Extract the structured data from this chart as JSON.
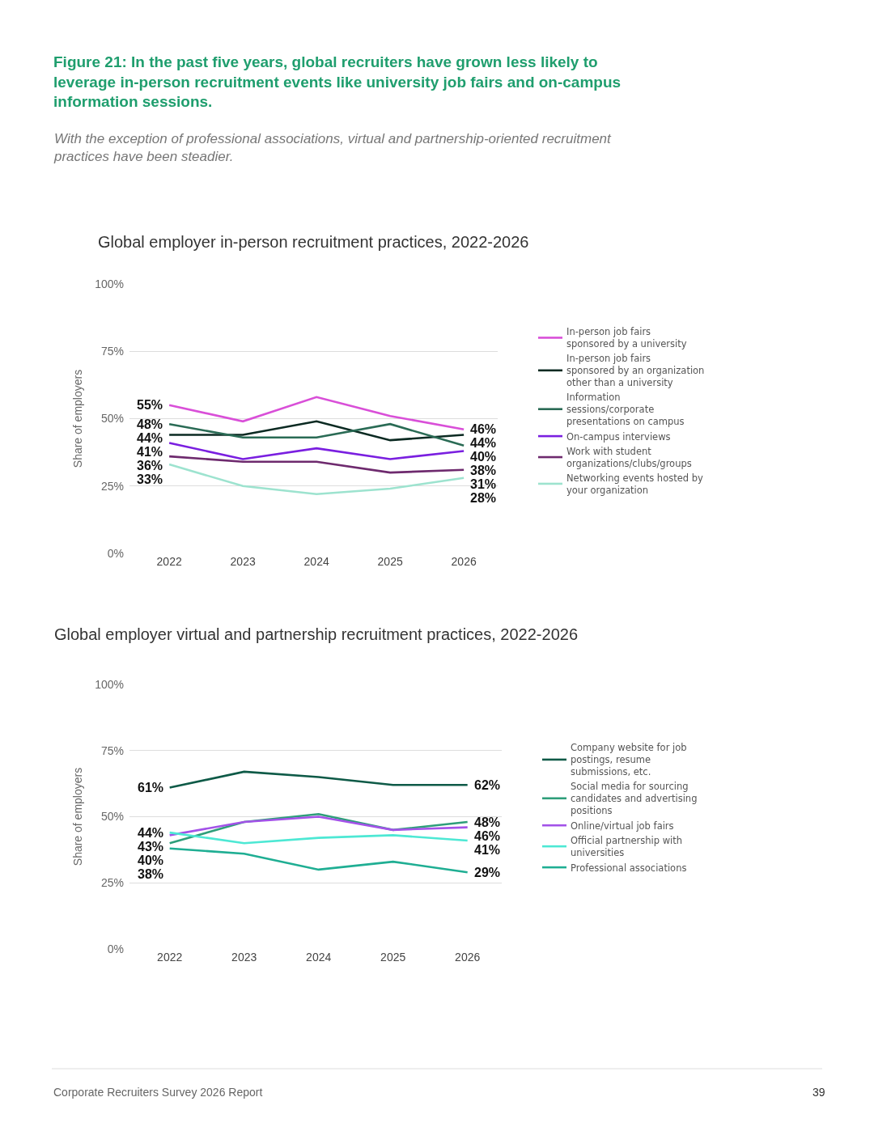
{
  "chart_data": [
    {
      "type": "line",
      "title": "Global employer in-person recruitment practices, 2022-2026",
      "annotations": [
        "Figure 21: In the past five years, global recruiters have grown less likely to leverage in-person recruitment events like university job fairs and on-campus information sessions.",
        "With the exception of professional associations, virtual and partnership-oriented recruitment practices have been steadier."
      ],
      "categories": [
        "2022",
        "2023",
        "2024",
        "2025",
        "2026"
      ],
      "ylabel": "Share of employers",
      "ylim": [
        0,
        100
      ],
      "yticks": [
        {
          "value": 0,
          "label": "0%"
        },
        {
          "value": 25,
          "label": "25%"
        },
        {
          "value": 50,
          "label": "50%"
        },
        {
          "value": 75,
          "label": "75%"
        },
        {
          "value": 100,
          "label": "100%"
        }
      ],
      "grid": "y",
      "legend": "right",
      "series": [
        {
          "name": "In-person job fairs sponsored by a university",
          "color": "#d94fd8",
          "values": [
            55,
            49,
            58,
            51,
            46
          ],
          "value_labels": [
            "55%",
            null,
            null,
            null,
            "46%"
          ]
        },
        {
          "name": "In-person job fairs sponsored by an organization other than a university",
          "color": "#0b2a22",
          "values": [
            44,
            44,
            49,
            42,
            44
          ],
          "value_labels": [
            "44%",
            null,
            null,
            null,
            "44%"
          ]
        },
        {
          "name": "Information sessions/corporate presentations on campus",
          "color": "#2a6b55",
          "values": [
            48,
            43,
            43,
            48,
            40
          ],
          "value_labels": [
            "48%",
            null,
            null,
            null,
            "40%"
          ]
        },
        {
          "name": "On-campus interviews",
          "color": "#7a1fe0",
          "values": [
            41,
            35,
            39,
            35,
            38
          ],
          "value_labels": [
            "41%",
            null,
            null,
            null,
            "38%"
          ]
        },
        {
          "name": "Work with student organizations/clubs/groups",
          "color": "#6e2a6e",
          "values": [
            36,
            34,
            34,
            30,
            31
          ],
          "value_labels": [
            "36%",
            null,
            null,
            null,
            "31%"
          ]
        },
        {
          "name": "Networking events hosted by your organization",
          "color": "#9de3cf",
          "values": [
            33,
            25,
            22,
            24,
            28
          ],
          "value_labels": [
            "33%",
            null,
            null,
            null,
            "28%"
          ]
        }
      ]
    },
    {
      "type": "line",
      "title": "Global employer virtual and partnership recruitment practices, 2022-2026",
      "annotations": [
        "Corporate Recruiters Survey 2026 Report",
        "39"
      ],
      "categories": [
        "2022",
        "2023",
        "2024",
        "2025",
        "2026"
      ],
      "ylabel": "Share of employers",
      "ylim": [
        0,
        100
      ],
      "yticks": [
        {
          "value": 0,
          "label": "0%"
        },
        {
          "value": 25,
          "label": "25%"
        },
        {
          "value": 50,
          "label": "50%"
        },
        {
          "value": 75,
          "label": "75%"
        },
        {
          "value": 100,
          "label": "100%"
        }
      ],
      "grid": "y",
      "legend": "right",
      "series": [
        {
          "name": "Company website for job postings, resume submissions, etc.",
          "color": "#0e5a47",
          "values": [
            61,
            67,
            65,
            62,
            62
          ],
          "value_labels": [
            "61%",
            null,
            null,
            null,
            "62%"
          ]
        },
        {
          "name": "Social media for sourcing candidates and advertising positions",
          "color": "#2e9e7a",
          "values": [
            40,
            48,
            51,
            45,
            48
          ],
          "value_labels": [
            "40%",
            null,
            null,
            null,
            "48%"
          ]
        },
        {
          "name": "Online/virtual job fairs",
          "color": "#a352e8",
          "values": [
            43,
            48,
            50,
            45,
            46
          ],
          "value_labels": [
            "43%",
            null,
            null,
            null,
            "46%"
          ]
        },
        {
          "name": "Official partnership with universities",
          "color": "#4de8d4",
          "values": [
            44,
            40,
            42,
            43,
            41
          ],
          "value_labels": [
            "44%",
            null,
            null,
            null,
            "41%"
          ]
        },
        {
          "name": "Professional associations",
          "color": "#1fae93",
          "values": [
            38,
            36,
            30,
            33,
            29
          ],
          "value_labels": [
            "38%",
            null,
            null,
            null,
            "29%"
          ]
        }
      ]
    }
  ]
}
